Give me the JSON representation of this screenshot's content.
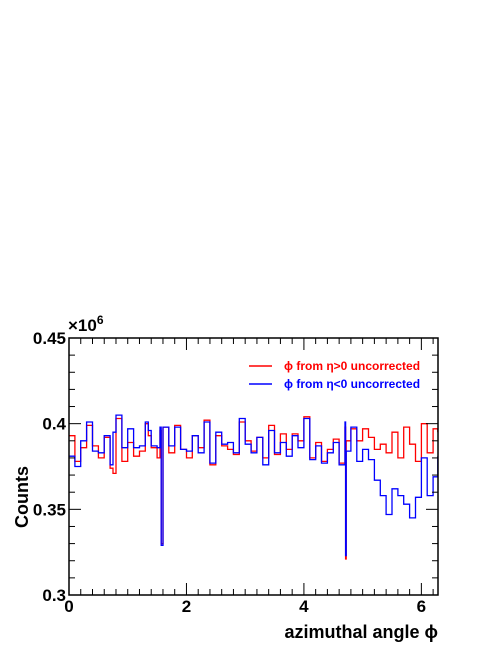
{
  "chart_data": {
    "type": "line",
    "title": "",
    "xlabel": "azimuthal angle ϕ",
    "ylabel": "Counts",
    "xlim": [
      0,
      6.2832
    ],
    "ylim": [
      0.3,
      0.45
    ],
    "y_multiplier_label": "×10",
    "y_multiplier_exponent": "6",
    "x_ticks": [
      "0",
      "2",
      "4",
      "6"
    ],
    "y_ticks": [
      "0.3",
      "0.35",
      "0.4",
      "0.45"
    ],
    "legend_position": "top-right",
    "grid": false,
    "series": [
      {
        "name": "ϕ from η>0 uncorrected",
        "color": "#ff0000",
        "x": [
          0.0,
          0.1,
          0.2,
          0.3,
          0.4,
          0.5,
          0.6,
          0.7,
          0.75,
          0.8,
          0.9,
          1.0,
          1.1,
          1.2,
          1.3,
          1.35,
          1.4,
          1.5,
          1.55,
          1.57,
          1.6,
          1.7,
          1.8,
          1.9,
          2.0,
          2.1,
          2.2,
          2.3,
          2.4,
          2.5,
          2.6,
          2.7,
          2.8,
          2.9,
          3.0,
          3.1,
          3.2,
          3.3,
          3.4,
          3.5,
          3.6,
          3.7,
          3.8,
          3.9,
          4.0,
          4.1,
          4.2,
          4.3,
          4.4,
          4.5,
          4.6,
          4.7,
          4.71,
          4.72,
          4.8,
          4.9,
          5.0,
          5.1,
          5.2,
          5.3,
          5.4,
          5.5,
          5.6,
          5.7,
          5.8,
          5.9,
          6.0,
          6.1,
          6.2,
          6.28
        ],
        "values": [
          0.393,
          0.378,
          0.386,
          0.399,
          0.387,
          0.38,
          0.392,
          0.374,
          0.371,
          0.403,
          0.378,
          0.389,
          0.381,
          0.384,
          0.4,
          0.393,
          0.386,
          0.38,
          0.396,
          0.33,
          0.398,
          0.383,
          0.399,
          0.385,
          0.38,
          0.393,
          0.386,
          0.402,
          0.376,
          0.393,
          0.387,
          0.385,
          0.382,
          0.401,
          0.39,
          0.384,
          0.392,
          0.38,
          0.399,
          0.382,
          0.394,
          0.385,
          0.394,
          0.39,
          0.404,
          0.38,
          0.389,
          0.378,
          0.385,
          0.391,
          0.377,
          0.398,
          0.321,
          0.39,
          0.397,
          0.39,
          0.397,
          0.392,
          0.385,
          0.388,
          0.383,
          0.395,
          0.38,
          0.398,
          0.388,
          0.378,
          0.4,
          0.383,
          0.397,
          0.395
        ]
      },
      {
        "name": "ϕ from η<0 uncorrected",
        "color": "#0000ff",
        "x": [
          0.0,
          0.1,
          0.2,
          0.3,
          0.4,
          0.5,
          0.6,
          0.7,
          0.75,
          0.8,
          0.9,
          1.0,
          1.1,
          1.2,
          1.3,
          1.35,
          1.4,
          1.5,
          1.55,
          1.57,
          1.6,
          1.7,
          1.8,
          1.9,
          2.0,
          2.1,
          2.2,
          2.3,
          2.4,
          2.5,
          2.6,
          2.7,
          2.8,
          2.9,
          3.0,
          3.1,
          3.2,
          3.3,
          3.4,
          3.5,
          3.6,
          3.7,
          3.8,
          3.9,
          4.0,
          4.1,
          4.2,
          4.3,
          4.4,
          4.5,
          4.6,
          4.7,
          4.71,
          4.72,
          4.8,
          4.9,
          5.0,
          5.1,
          5.2,
          5.3,
          5.4,
          5.5,
          5.6,
          5.7,
          5.8,
          5.9,
          6.0,
          6.1,
          6.2,
          6.28
        ],
        "values": [
          0.381,
          0.375,
          0.39,
          0.401,
          0.384,
          0.383,
          0.393,
          0.376,
          0.395,
          0.405,
          0.386,
          0.397,
          0.386,
          0.387,
          0.401,
          0.396,
          0.387,
          0.386,
          0.398,
          0.329,
          0.398,
          0.387,
          0.398,
          0.385,
          0.384,
          0.393,
          0.383,
          0.401,
          0.377,
          0.395,
          0.388,
          0.389,
          0.383,
          0.403,
          0.388,
          0.383,
          0.392,
          0.376,
          0.396,
          0.383,
          0.389,
          0.381,
          0.393,
          0.386,
          0.403,
          0.379,
          0.387,
          0.377,
          0.383,
          0.389,
          0.376,
          0.401,
          0.323,
          0.384,
          0.398,
          0.378,
          0.385,
          0.379,
          0.367,
          0.358,
          0.347,
          0.362,
          0.358,
          0.353,
          0.345,
          0.357,
          0.38,
          0.358,
          0.369,
          0.381
        ]
      }
    ]
  }
}
